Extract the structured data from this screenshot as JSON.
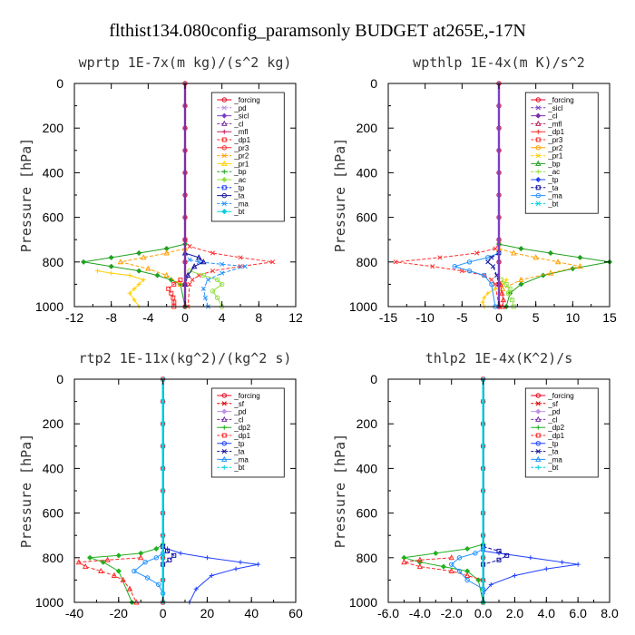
{
  "title": "flthist134.080config_paramsonly  BUDGET at265E,-17N",
  "colors": {
    "_forcing": "#e8001a",
    "_pd": "#bf8fe8",
    "_sicl": "#7a40c8",
    "_cl": "#7a2fa8",
    "_mfl": "#c02060",
    "_dp1": "#ff2a2a",
    "_pr3": "#ff3030",
    "_pr2": "#ffa000",
    "_pr1": "#ffd000",
    "_bp": "#20a020",
    "_ac": "#90e040",
    "_tp": "#2040ff",
    "_ta": "#1010a0",
    "_ma": "#2090ff",
    "_bt": "#00d0e0",
    "_sf": "#e00000",
    "_dp2": "#20b020"
  },
  "chart_data": [
    {
      "type": "line",
      "title": "wprtp   1E-7x(m kg)/(s^2 kg)",
      "ylabel": "Pressure [hPa]",
      "xlim": [
        -12,
        12
      ],
      "ylim": [
        1000,
        0
      ],
      "y_reversed": true,
      "xticks": [
        -12,
        -8,
        -4,
        0,
        4,
        8,
        12
      ],
      "xtick_labels": [
        "-12",
        "-8",
        "-4",
        "0",
        "4",
        "8",
        "12"
      ],
      "yticks": [
        0,
        200,
        400,
        600,
        800,
        1000
      ],
      "ytick_labels": [
        "0",
        "200",
        "400",
        "600",
        "800",
        "1000"
      ],
      "legend": [
        "_forcing",
        "_pd",
        "_sicl",
        "_cl",
        "_mfl",
        "_dp1",
        "_pr3",
        "_pr2",
        "_pr1",
        "_bp",
        "_ac",
        "_tp",
        "_ta",
        "_ma",
        "_bt"
      ],
      "series": [
        {
          "name": "_forcing",
          "x": [
            0,
            0,
            0,
            0,
            0,
            0,
            0,
            0,
            0,
            0,
            0
          ],
          "y": [
            0,
            100,
            200,
            300,
            400,
            500,
            600,
            700,
            800,
            900,
            1000
          ]
        },
        {
          "name": "_pr3",
          "x": [
            0,
            0.5,
            3,
            6,
            9.5,
            6,
            3,
            1.5,
            0.8,
            0.5,
            0.3
          ],
          "y": [
            700,
            730,
            760,
            780,
            800,
            820,
            840,
            860,
            880,
            900,
            1000
          ]
        },
        {
          "name": "_bp",
          "x": [
            0,
            -2,
            -5,
            -8,
            -11,
            -8,
            -5,
            -3,
            -1.5,
            -0.5,
            0
          ],
          "y": [
            720,
            740,
            760,
            780,
            800,
            820,
            840,
            860,
            880,
            900,
            1000
          ]
        },
        {
          "name": "_pr2",
          "x": [
            0,
            -2,
            -4.5,
            -7,
            -4,
            -2,
            -0.5
          ],
          "y": [
            740,
            760,
            780,
            800,
            830,
            860,
            900
          ]
        },
        {
          "name": "_pr1",
          "x": [
            -9.5,
            -8,
            -6,
            -4.5,
            -5,
            -5.5,
            -6,
            -5.5,
            -5
          ],
          "y": [
            840,
            850,
            860,
            880,
            900,
            920,
            940,
            970,
            1000
          ]
        },
        {
          "name": "_dp1",
          "x": [
            -0.5,
            -1.2,
            -1.8,
            -1.5,
            -1.3,
            -1.2,
            -1.2
          ],
          "y": [
            880,
            900,
            920,
            940,
            960,
            980,
            1000
          ]
        },
        {
          "name": "_ac",
          "x": [
            0.5,
            2,
            3.5,
            4,
            3,
            3.5,
            4
          ],
          "y": [
            840,
            860,
            880,
            900,
            930,
            960,
            1000
          ]
        },
        {
          "name": "_ma",
          "x": [
            0.5,
            1.5,
            4,
            6.5,
            4,
            2.5,
            2,
            2.2,
            2.5
          ],
          "y": [
            790,
            800,
            810,
            820,
            850,
            880,
            920,
            960,
            1000
          ]
        },
        {
          "name": "_ta",
          "x": [
            0,
            1.5,
            2,
            1,
            0.3,
            0
          ],
          "y": [
            760,
            780,
            800,
            820,
            860,
            900
          ]
        },
        {
          "name": "_cl",
          "x": [
            0,
            0,
            0,
            0,
            0,
            0,
            0,
            0,
            0,
            0,
            0
          ],
          "y": [
            0,
            100,
            200,
            300,
            400,
            500,
            600,
            700,
            800,
            900,
            1000
          ]
        }
      ]
    },
    {
      "type": "line",
      "title": "wpthlp   1E-4x(m K)/s^2",
      "ylabel": "Pressure [hPa]",
      "xlim": [
        -15,
        15
      ],
      "ylim": [
        1000,
        0
      ],
      "y_reversed": true,
      "xticks": [
        -15,
        -10,
        -5,
        0,
        5,
        10,
        15
      ],
      "xtick_labels": [
        "-15",
        "-10",
        "-5",
        "0",
        "5",
        "10",
        "15"
      ],
      "yticks": [
        0,
        200,
        400,
        600,
        800,
        1000
      ],
      "ytick_labels": [
        "0",
        "200",
        "400",
        "600",
        "800",
        "1000"
      ],
      "legend": [
        "_forcing",
        "_sicl",
        "_cl",
        "_mfl",
        "_dp1",
        "_pr3",
        "_pr2",
        "_pr1",
        "_bp",
        "_ac",
        "_tp",
        "_ta",
        "_ma",
        "_bt"
      ],
      "series": [
        {
          "name": "_forcing",
          "x": [
            0,
            0,
            0,
            0,
            0,
            0,
            0,
            0,
            0,
            0,
            0
          ],
          "y": [
            0,
            100,
            200,
            300,
            400,
            500,
            600,
            700,
            800,
            900,
            1000
          ]
        },
        {
          "name": "_pr3",
          "x": [
            0,
            -0.5,
            -3,
            -8,
            -14,
            -9,
            -5,
            -2,
            -1,
            -0.5,
            0
          ],
          "y": [
            720,
            740,
            760,
            780,
            800,
            820,
            840,
            860,
            880,
            900,
            1000
          ]
        },
        {
          "name": "_bp",
          "x": [
            0,
            3,
            7,
            11,
            15,
            10,
            6,
            3,
            1.5,
            1
          ],
          "y": [
            720,
            740,
            760,
            780,
            800,
            830,
            860,
            900,
            940,
            1000
          ]
        },
        {
          "name": "_pr2",
          "x": [
            0,
            2,
            5,
            8,
            11,
            7,
            3,
            0.5
          ],
          "y": [
            740,
            760,
            780,
            800,
            820,
            850,
            880,
            920
          ]
        },
        {
          "name": "_pr1",
          "x": [
            1,
            0.5,
            -0.5,
            -1.5,
            -2,
            -2.2,
            -2
          ],
          "y": [
            880,
            900,
            920,
            940,
            960,
            980,
            1000
          ]
        },
        {
          "name": "_ac",
          "x": [
            0.3,
            1,
            1.5,
            1.3,
            1.8,
            2
          ],
          "y": [
            880,
            900,
            920,
            940,
            970,
            1000
          ]
        },
        {
          "name": "_ma",
          "x": [
            0,
            -1.5,
            -4,
            -6,
            -4,
            -2,
            -1,
            -0.5
          ],
          "y": [
            760,
            780,
            800,
            820,
            840,
            860,
            900,
            1000
          ]
        },
        {
          "name": "_ta",
          "x": [
            0,
            -1,
            -1.5,
            -0.8,
            -0.3,
            0
          ],
          "y": [
            760,
            780,
            800,
            820,
            860,
            900
          ]
        },
        {
          "name": "_dp1",
          "x": [
            0.2,
            0.4,
            0.6,
            0.5
          ],
          "y": [
            900,
            940,
            970,
            1000
          ]
        },
        {
          "name": "_sicl",
          "x": [
            0,
            0,
            0,
            0,
            0,
            0,
            0,
            0,
            0,
            0,
            0
          ],
          "y": [
            0,
            100,
            200,
            300,
            400,
            500,
            600,
            700,
            800,
            900,
            1000
          ]
        }
      ]
    },
    {
      "type": "line",
      "title": "rtp2   1E-11x(kg^2)/(kg^2 s)",
      "ylabel": "Pressure [hPa]",
      "xlim": [
        -40,
        60
      ],
      "ylim": [
        1000,
        0
      ],
      "y_reversed": true,
      "xticks": [
        -40,
        -20,
        0,
        20,
        40,
        60
      ],
      "xtick_labels": [
        "-40",
        "-20",
        "0",
        "20",
        "40",
        "60"
      ],
      "yticks": [
        0,
        200,
        400,
        600,
        800,
        1000
      ],
      "ytick_labels": [
        "0",
        "200",
        "400",
        "600",
        "800",
        "1000"
      ],
      "legend": [
        "_forcing",
        "_sf",
        "_pd",
        "_cl",
        "_dp2",
        "_dp1",
        "_tp",
        "_ta",
        "_ma",
        "_bt"
      ],
      "series": [
        {
          "name": "_forcing",
          "x": [
            0,
            0,
            0,
            0,
            0,
            0,
            0,
            0,
            0,
            0,
            0
          ],
          "y": [
            0,
            100,
            200,
            300,
            400,
            500,
            600,
            700,
            800,
            900,
            1000
          ]
        },
        {
          "name": "_sf",
          "x": [
            0,
            0,
            0,
            0,
            0,
            0,
            0,
            0,
            0,
            0,
            0
          ],
          "y": [
            0,
            100,
            200,
            300,
            400,
            500,
            600,
            700,
            800,
            900,
            1000
          ]
        },
        {
          "name": "_dp2",
          "x": [
            0,
            -3,
            -10,
            -20,
            -33,
            -27,
            -20,
            -14
          ],
          "y": [
            740,
            760,
            780,
            790,
            800,
            820,
            860,
            1000
          ]
        },
        {
          "name": "_dp1",
          "x": [
            -10,
            -25,
            -38,
            -35,
            -28,
            -22,
            -18,
            -15,
            -12
          ],
          "y": [
            800,
            810,
            820,
            840,
            860,
            880,
            900,
            940,
            1000
          ]
        },
        {
          "name": "_tp",
          "x": [
            2,
            8,
            20,
            35,
            43,
            33,
            22,
            15,
            12
          ],
          "y": [
            760,
            780,
            800,
            820,
            830,
            850,
            880,
            940,
            1000
          ]
        },
        {
          "name": "_ta",
          "x": [
            0,
            2,
            5,
            3,
            0
          ],
          "y": [
            750,
            770,
            790,
            810,
            830
          ]
        },
        {
          "name": "_ma",
          "x": [
            0,
            -3,
            -8,
            -13,
            -7,
            -2,
            0
          ],
          "y": [
            780,
            800,
            820,
            860,
            890,
            920,
            960
          ]
        },
        {
          "name": "_bt",
          "x": [
            0,
            0,
            0,
            0,
            0,
            0,
            0,
            0,
            0,
            0,
            0
          ],
          "y": [
            0,
            100,
            200,
            300,
            400,
            500,
            600,
            700,
            800,
            900,
            1000
          ]
        }
      ]
    },
    {
      "type": "line",
      "title": "thlp2   1E-4x(K^2)/s",
      "ylabel": "Pressure [hPa]",
      "xlim": [
        -6,
        8
      ],
      "ylim": [
        1000,
        0
      ],
      "y_reversed": true,
      "xticks": [
        -6,
        -4,
        -2,
        0,
        2,
        4,
        6,
        8
      ],
      "xtick_labels": [
        "-6.0",
        "-4.0",
        "-2.0",
        "0.0",
        "2.0",
        "4.0",
        "6.0",
        "8.0"
      ],
      "yticks": [
        0,
        200,
        400,
        600,
        800,
        1000
      ],
      "ytick_labels": [
        "0",
        "200",
        "400",
        "600",
        "800",
        "1000"
      ],
      "legend": [
        "_forcing",
        "_sf",
        "_pd",
        "_cl",
        "_dp2",
        "_dp1",
        "_tp",
        "_ta",
        "_ma",
        "_bt"
      ],
      "series": [
        {
          "name": "_forcing",
          "x": [
            0,
            0,
            0,
            0,
            0,
            0,
            0,
            0,
            0,
            0,
            0
          ],
          "y": [
            0,
            100,
            200,
            300,
            400,
            500,
            600,
            700,
            800,
            900,
            1000
          ]
        },
        {
          "name": "_sf",
          "x": [
            0,
            0,
            0,
            0,
            0,
            0,
            0,
            0,
            0,
            0,
            0
          ],
          "y": [
            0,
            100,
            200,
            300,
            400,
            500,
            600,
            700,
            800,
            900,
            1000
          ]
        },
        {
          "name": "_dp2",
          "x": [
            0,
            -1,
            -3,
            -5,
            -4,
            -2.5,
            -1,
            -0.3,
            0
          ],
          "y": [
            740,
            760,
            780,
            800,
            820,
            840,
            860,
            900,
            1000
          ]
        },
        {
          "name": "_dp1",
          "x": [
            -2,
            -4,
            -5,
            -4,
            -2,
            -1,
            0
          ],
          "y": [
            800,
            810,
            820,
            840,
            860,
            880,
            900
          ]
        },
        {
          "name": "_tp",
          "x": [
            0,
            1,
            3,
            5,
            6,
            4,
            2,
            0.5,
            0
          ],
          "y": [
            770,
            780,
            800,
            820,
            830,
            850,
            880,
            920,
            960
          ]
        },
        {
          "name": "_ta",
          "x": [
            0,
            1,
            1.5,
            1,
            0
          ],
          "y": [
            750,
            770,
            790,
            810,
            830
          ]
        },
        {
          "name": "_ma",
          "x": [
            0,
            -0.5,
            -1.5,
            -2,
            -1.5,
            -1,
            0
          ],
          "y": [
            760,
            780,
            800,
            830,
            860,
            900,
            940
          ]
        },
        {
          "name": "_bt",
          "x": [
            0,
            0,
            0,
            0,
            0,
            0,
            0,
            0,
            0,
            0,
            0
          ],
          "y": [
            0,
            100,
            200,
            300,
            400,
            500,
            600,
            700,
            800,
            900,
            1000
          ]
        }
      ]
    }
  ]
}
